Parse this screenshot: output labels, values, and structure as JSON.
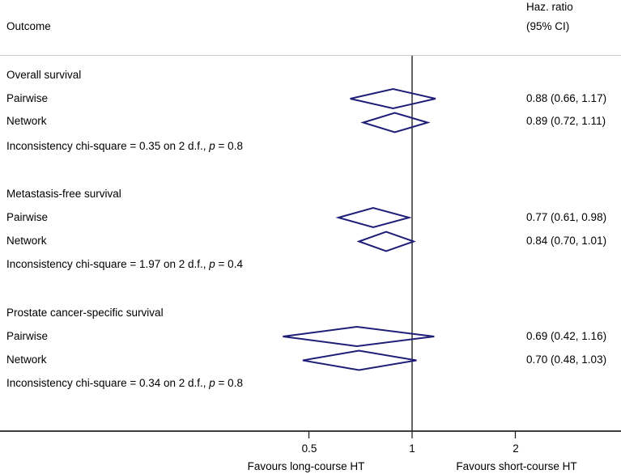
{
  "header": {
    "outcome": "Outcome",
    "hr_line1": "Haz. ratio",
    "hr_line2": "(95% CI)"
  },
  "axis": {
    "tick_labels": [
      "0.5",
      "1",
      "2"
    ],
    "footer_left": "Favours long-course HT",
    "footer_right": "Favours short-course HT"
  },
  "colors": {
    "diamond": "#1e1e78",
    "axis": "#222222",
    "ref_line": "#111111",
    "separator": "#c9c9c9"
  },
  "chart_data": {
    "type": "forest",
    "x_scale": "log",
    "x_ticks": [
      0.5,
      1,
      2
    ],
    "reference_line": 1,
    "columns": [
      "Outcome",
      "Haz. ratio (95% CI)"
    ],
    "xlabel_left": "Favours long-course HT",
    "xlabel_right": "Favours short-course HT",
    "groups": [
      {
        "title": "Overall survival",
        "rows": [
          {
            "label": "Pairwise",
            "hr": 0.88,
            "ci": [
              0.66,
              1.17
            ],
            "display": "0.88 (0.66, 1.17)"
          },
          {
            "label": "Network",
            "hr": 0.89,
            "ci": [
              0.72,
              1.11
            ],
            "display": "0.89 (0.72, 1.11)"
          }
        ],
        "note_prefix": "Inconsistency chi-square = 0.35 on 2 d.f., ",
        "note_p": "p",
        "note_suffix": " = 0.8"
      },
      {
        "title": "Metastasis-free survival",
        "rows": [
          {
            "label": "Pairwise",
            "hr": 0.77,
            "ci": [
              0.61,
              0.98
            ],
            "display": "0.77 (0.61, 0.98)"
          },
          {
            "label": "Network",
            "hr": 0.84,
            "ci": [
              0.7,
              1.01
            ],
            "display": "0.84 (0.70, 1.01)"
          }
        ],
        "note_prefix": "Inconsistency chi-square = 1.97 on 2 d.f., ",
        "note_p": "p",
        "note_suffix": " = 0.4"
      },
      {
        "title": "Prostate cancer-specific survival",
        "rows": [
          {
            "label": "Pairwise",
            "hr": 0.69,
            "ci": [
              0.42,
              1.16
            ],
            "display": "0.69 (0.42, 1.16)"
          },
          {
            "label": "Network",
            "hr": 0.7,
            "ci": [
              0.48,
              1.03
            ],
            "display": "0.70 (0.48, 1.03)"
          }
        ],
        "note_prefix": "Inconsistency chi-square = 0.34 on 2 d.f., ",
        "note_p": "p",
        "note_suffix": " = 0.8"
      }
    ]
  }
}
